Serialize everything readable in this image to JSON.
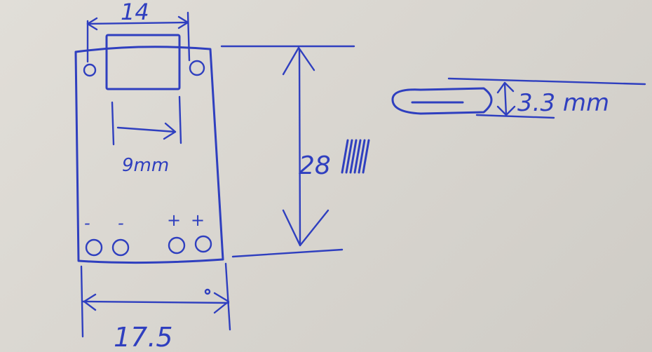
{
  "annotations": {
    "top_width": "14",
    "inner_width": "9mm",
    "height": "28",
    "bottom_width": "17.5",
    "thickness": "3.3 mm",
    "minus_left": "-",
    "minus_right": "-",
    "plus_left": "+",
    "plus_right": "+"
  },
  "colors": {
    "ink": "#2f3fbf",
    "paper": "#dcd9d3"
  }
}
